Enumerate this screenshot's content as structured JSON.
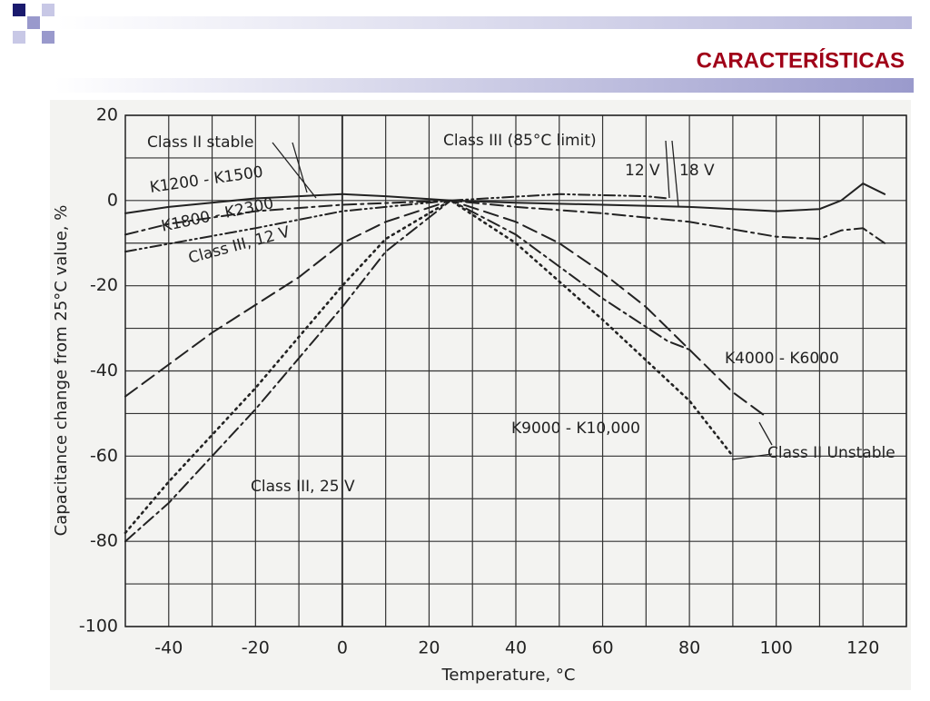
{
  "slide_title": "CARACTERÍSTICAS",
  "chart_data": {
    "type": "line",
    "xlabel": "Temperature, °C",
    "ylabel": "Capacitance change from 25°C value, %",
    "xlim": [
      -50,
      130
    ],
    "ylim": [
      -100,
      20
    ],
    "xticks": [
      -40,
      -20,
      0,
      20,
      40,
      60,
      80,
      100,
      120
    ],
    "yticks": [
      -100,
      -80,
      -60,
      -40,
      -20,
      0,
      20
    ],
    "minor_xticks": [
      -30,
      -10,
      10,
      30,
      50,
      70,
      90,
      110,
      130
    ],
    "minor_yticks": [
      -90,
      -70,
      -50,
      -30,
      -10,
      10
    ],
    "grid": true,
    "series": [
      {
        "name": "K1200 - K1500",
        "color": "#222222",
        "style": "solid",
        "x": [
          -50,
          -40,
          -20,
          0,
          10,
          25,
          40,
          60,
          80,
          100,
          110,
          115,
          120,
          125
        ],
        "values": [
          -3,
          -1.5,
          0.5,
          1.5,
          1,
          0,
          -0.5,
          -1,
          -1.5,
          -2.5,
          -2,
          0,
          4,
          1.5
        ]
      },
      {
        "name": "K1800 - K2300",
        "color": "#222222",
        "style": "dashdot",
        "x": [
          -50,
          -40,
          -20,
          0,
          25,
          40,
          60,
          80,
          100,
          110,
          115,
          120,
          125
        ],
        "values": [
          -8,
          -5.5,
          -2.5,
          -1,
          0,
          -1.5,
          -3,
          -5,
          -8.5,
          -9,
          -7,
          -6.5,
          -10
        ]
      },
      {
        "name": "Class III, 12 V",
        "color": "#222222",
        "style": "dashdotdot",
        "x": [
          -50,
          -20,
          0,
          25,
          50,
          70,
          75
        ],
        "values": [
          -12,
          -6.5,
          -2.5,
          0,
          1.5,
          1,
          0.5
        ]
      },
      {
        "name": "K4000 - K6000",
        "color": "#222222",
        "style": "longdash",
        "x": [
          -50,
          -30,
          -10,
          0,
          10,
          25,
          40,
          50,
          60,
          70,
          80,
          90,
          98
        ],
        "values": [
          -46,
          -31,
          -18,
          -10,
          -5,
          0,
          -5,
          -10,
          -17,
          -25,
          -35,
          -45,
          -51
        ]
      },
      {
        "name": "K9000 - K10,000",
        "color": "#222222",
        "style": "dotted",
        "x": [
          -50,
          -40,
          -20,
          0,
          10,
          25,
          40,
          60,
          80,
          90
        ],
        "values": [
          -78,
          -66,
          -44,
          -20,
          -9,
          0,
          -10,
          -28,
          -47,
          -60
        ]
      },
      {
        "name": "Class III, 25 V",
        "color": "#222222",
        "style": "dashdot",
        "x": [
          -50,
          -40,
          -20,
          0,
          10,
          25,
          40,
          60,
          75,
          80
        ],
        "values": [
          -80,
          -71,
          -49,
          -25,
          -12,
          0,
          -8,
          -23,
          -33,
          -35
        ]
      }
    ],
    "annotations": [
      "Class II stable",
      "Class III (85°C limit)",
      "12 V",
      "18 V",
      "Class II Unstable"
    ]
  }
}
